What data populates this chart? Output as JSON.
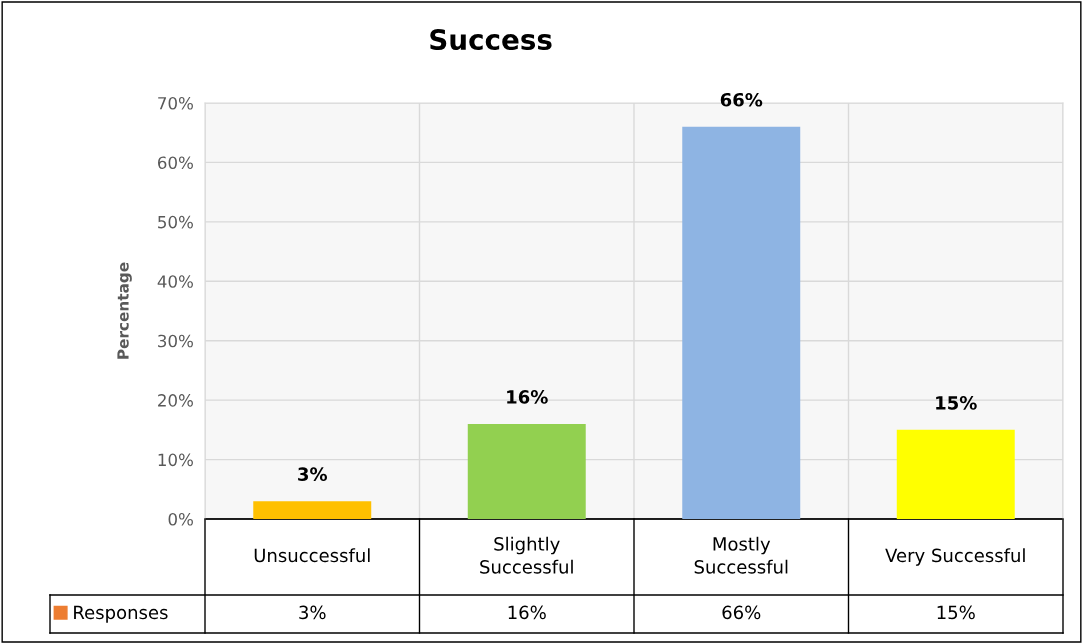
{
  "chart_data": {
    "type": "bar",
    "title": "Success",
    "ylabel": "Percentage",
    "categories": [
      "Unsuccessful",
      "Slightly\nSuccessful",
      "Mostly\nSuccessful",
      "Very Successful"
    ],
    "series": [
      {
        "name": "Responses",
        "color": "#ed7d31",
        "colors": [
          "#ffc000",
          "#92d050",
          "#8eb4e3",
          "#ffff00"
        ],
        "values": [
          3,
          16,
          66,
          15
        ],
        "value_labels": [
          "3%",
          "16%",
          "66%",
          "15%"
        ]
      }
    ],
    "ylim": [
      0,
      70
    ],
    "yticks": [
      {
        "value": 0,
        "label": "0%"
      },
      {
        "value": 10,
        "label": "10%"
      },
      {
        "value": 20,
        "label": "20%"
      },
      {
        "value": 30,
        "label": "30%"
      },
      {
        "value": 40,
        "label": "40%"
      },
      {
        "value": 50,
        "label": "50%"
      },
      {
        "value": 60,
        "label": "60%"
      },
      {
        "value": 70,
        "label": "70%"
      }
    ],
    "grid": true,
    "legend": "bottom"
  }
}
